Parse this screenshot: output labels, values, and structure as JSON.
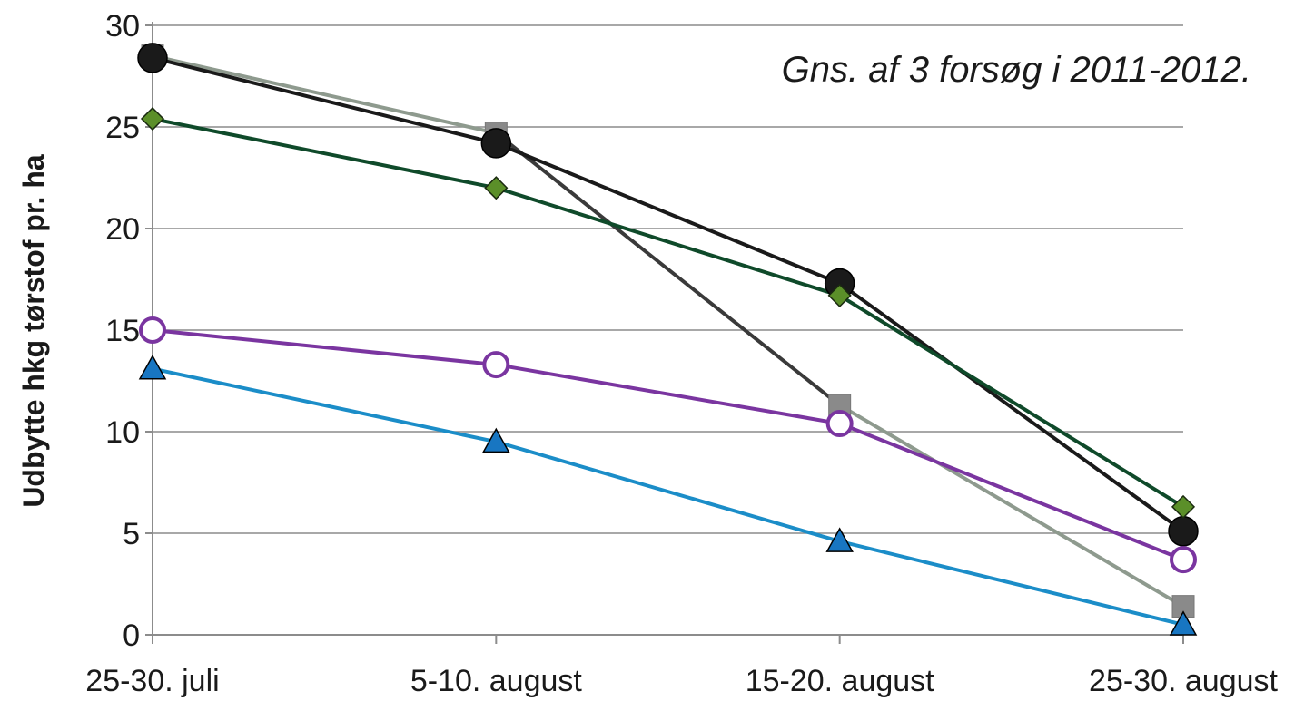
{
  "chart_data": {
    "type": "line",
    "title": "",
    "annotation": "Gns. af 3 forsøg i 2011-2012.",
    "xlabel": "",
    "ylabel": "Udbytte hkg tørstof pr. ha",
    "categories": [
      "25-30. juli",
      "5-10. august",
      "15-20. august",
      "25-30. august"
    ],
    "ylim": [
      0,
      30
    ],
    "yticks": [
      0,
      5,
      10,
      15,
      20,
      25,
      30
    ],
    "grid": true,
    "legend": "none",
    "series": [
      {
        "values": [
          28.5,
          24.7,
          11.3,
          1.4
        ],
        "color": "#8a8a8a",
        "line_colors": [
          "#8e9a8e",
          "#3a3a3a",
          "#8e9a8e"
        ],
        "marker": "square",
        "marker_fill": "#8a8a8a"
      },
      {
        "values": [
          28.4,
          24.2,
          17.3,
          5.1
        ],
        "color": "#1a1a1a",
        "marker": "circle-filled",
        "marker_fill": "#1a1a1a"
      },
      {
        "values": [
          25.4,
          22.0,
          16.7,
          6.3
        ],
        "color": "#0f4a2a",
        "marker": "diamond",
        "marker_fill": "#5b8f29"
      },
      {
        "values": [
          15.0,
          13.3,
          10.4,
          3.7
        ],
        "color": "#7a35a0",
        "marker": "circle-open",
        "marker_fill": "#ffffff"
      },
      {
        "values": [
          13.1,
          9.5,
          4.6,
          0.5
        ],
        "color": "#1b8dc8",
        "marker": "triangle",
        "marker_fill": "#1876c2"
      }
    ]
  }
}
